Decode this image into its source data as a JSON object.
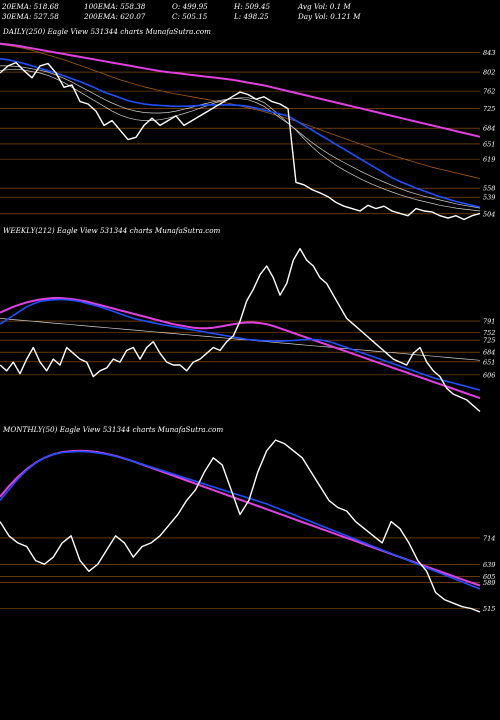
{
  "header": {
    "stats": [
      [
        "20EMA: 518.68",
        "100EMA: 558.38",
        "O: 499.95",
        "H: 509.45",
        "Avg Vol: 0.1 M"
      ],
      [
        "30EMA: 527.58",
        "200EMA: 620.07",
        "C: 505.15",
        "L: 498.25",
        "Day Vol: 0.121 M"
      ]
    ]
  },
  "panels": [
    {
      "label": "DAILY(250) Eagle   View  531344  charts MunafaSutra.com"
    },
    {
      "label": "WEEKLY(212) Eagle   View  531344  charts MunafaSutra.com"
    },
    {
      "label": "MONTHLY(50) Eagle   View  531344  charts MunafaSutra.com"
    }
  ],
  "colors": {
    "background": "#000000",
    "price": "#ffffff",
    "ema_blue": "#1f4fff",
    "ema_magenta": "#e040e0",
    "levels": "#a05a10",
    "ema_white": "#cfcfcf"
  },
  "chart_data": [
    {
      "type": "line",
      "title": "DAILY(250) Eagle   View  531344  charts MunafaSutra.com",
      "ylim": [
        470,
        880
      ],
      "price_levels": [
        843,
        802,
        762,
        725,
        684,
        651,
        619,
        558,
        539,
        504
      ],
      "series": [
        {
          "name": "",
          "values": [
            800,
            815,
            822,
            805,
            790,
            815,
            820,
            800,
            770,
            775,
            740,
            735,
            720,
            690,
            700,
            680,
            660,
            665,
            690,
            705,
            690,
            700,
            710,
            690,
            700,
            710,
            720,
            730,
            740,
            750,
            760,
            755,
            745,
            750,
            740,
            735,
            725,
            570,
            565,
            555,
            548,
            540,
            528,
            520,
            515,
            510,
            522,
            515,
            520,
            510,
            505,
            500,
            515,
            510,
            508,
            500,
            495,
            500,
            492,
            500,
            505
          ]
        },
        {
          "values": [
            830,
            828,
            824,
            820,
            815,
            810,
            805,
            800,
            794,
            788,
            782,
            775,
            768,
            760,
            754,
            748,
            742,
            738,
            735,
            733,
            732,
            731,
            730,
            730,
            731,
            732,
            733,
            733,
            733,
            733,
            732,
            730,
            726,
            722,
            718,
            714,
            710,
            700,
            690,
            680,
            670,
            660,
            650,
            640,
            630,
            620,
            610,
            600,
            590,
            580,
            572,
            565,
            558,
            552,
            546,
            540,
            535,
            530,
            526,
            522,
            518
          ]
        },
        {
          "values": [
            862,
            860,
            858,
            855,
            852,
            849,
            846,
            843,
            840,
            837,
            834,
            831,
            828,
            825,
            822,
            819,
            816,
            813,
            810,
            807,
            804,
            802,
            800,
            798,
            796,
            794,
            792,
            790,
            788,
            786,
            783,
            780,
            777,
            774,
            770,
            766,
            762,
            758,
            754,
            750,
            746,
            742,
            738,
            734,
            730,
            726,
            722,
            718,
            714,
            710,
            706,
            702,
            698,
            694,
            690,
            686,
            682,
            678,
            674,
            670,
            666
          ]
        },
        {
          "values": [
            805,
            807,
            808,
            806,
            803,
            800,
            795,
            788,
            780,
            770,
            760,
            750,
            740,
            730,
            720,
            712,
            706,
            702,
            700,
            700,
            702,
            705,
            710,
            715,
            720,
            726,
            732,
            738,
            742,
            746,
            748,
            748,
            745,
            738,
            725,
            710,
            695,
            680,
            662,
            645,
            630,
            618,
            606,
            596,
            587,
            578,
            570,
            563,
            556,
            550,
            544,
            539,
            534,
            530,
            526,
            522,
            519,
            516,
            514,
            512,
            510
          ]
        },
        {
          "values": [
            815,
            815,
            814,
            812,
            809,
            806,
            802,
            796,
            789,
            781,
            772,
            763,
            754,
            745,
            737,
            730,
            724,
            720,
            717,
            716,
            716,
            717,
            720,
            724,
            728,
            733,
            737,
            741,
            744,
            746,
            746,
            744,
            738,
            730,
            718,
            706,
            694,
            681,
            667,
            654,
            642,
            631,
            621,
            612,
            603,
            594,
            586,
            578,
            571,
            564,
            557,
            551,
            546,
            541,
            537,
            533,
            529,
            525,
            522,
            519,
            516
          ]
        },
        {
          "values": [
            860,
            858,
            855,
            852,
            848,
            843,
            838,
            833,
            828,
            822,
            816,
            810,
            804,
            798,
            792,
            786,
            781,
            776,
            771,
            767,
            763,
            759,
            756,
            753,
            750,
            747,
            744,
            741,
            738,
            735,
            731,
            727,
            723,
            719,
            714,
            709,
            704,
            699,
            693,
            687,
            681,
            675,
            669,
            663,
            657,
            651,
            645,
            639,
            633,
            627,
            622,
            617,
            612,
            607,
            602,
            598,
            594,
            590,
            586,
            582,
            578
          ]
        }
      ]
    },
    {
      "type": "line",
      "title": "WEEKLY(212) Eagle   View  531344  charts MunafaSutra.com",
      "ylim": [
        420,
        1090
      ],
      "price_levels": [
        791,
        752,
        725,
        684,
        651,
        606
      ],
      "series": [
        {
          "name": "",
          "values": [
            640,
            620,
            650,
            610,
            660,
            700,
            650,
            620,
            660,
            640,
            700,
            680,
            660,
            650,
            600,
            620,
            630,
            660,
            650,
            690,
            700,
            660,
            700,
            720,
            680,
            650,
            640,
            640,
            620,
            650,
            660,
            680,
            700,
            690,
            720,
            740,
            790,
            860,
            900,
            950,
            980,
            940,
            880,
            920,
            1000,
            1040,
            1000,
            980,
            940,
            920,
            880,
            840,
            800,
            780,
            760,
            740,
            720,
            700,
            680,
            660,
            650,
            640,
            680,
            700,
            650,
            620,
            600,
            560,
            540,
            530,
            520,
            500,
            480
          ]
        },
        {
          "values": [
            780,
            795,
            810,
            825,
            840,
            850,
            858,
            862,
            864,
            865,
            864,
            862,
            858,
            852,
            846,
            840,
            832,
            824,
            816,
            808,
            800,
            795,
            790,
            785,
            780,
            776,
            772,
            768,
            764,
            760,
            756,
            752,
            748,
            744,
            740,
            736,
            732,
            728,
            726,
            724,
            723,
            722,
            722,
            723,
            724,
            726,
            728,
            728,
            726,
            722,
            716,
            708,
            700,
            692,
            684,
            676,
            668,
            660,
            652,
            644,
            636,
            628,
            620,
            612,
            604,
            596,
            590,
            584,
            578,
            572,
            566,
            560,
            554
          ]
        },
        {
          "values": [
            820,
            830,
            840,
            848,
            855,
            860,
            865,
            868,
            870,
            870,
            868,
            866,
            862,
            858,
            852,
            846,
            840,
            834,
            828,
            822,
            816,
            810,
            804,
            798,
            792,
            786,
            780,
            776,
            772,
            768,
            766,
            766,
            768,
            772,
            776,
            780,
            784,
            786,
            786,
            784,
            780,
            774,
            766,
            758,
            750,
            742,
            734,
            726,
            718,
            710,
            702,
            694,
            686,
            678,
            670,
            662,
            654,
            646,
            638,
            630,
            622,
            614,
            606,
            598,
            590,
            582,
            574,
            566,
            558,
            550,
            542,
            534,
            526
          ]
        },
        {
          "values": [
            800,
            798,
            796,
            794,
            792,
            790,
            788,
            786,
            784,
            782,
            780,
            778,
            776,
            774,
            772,
            770,
            768,
            766,
            764,
            762,
            760,
            758,
            756,
            754,
            752,
            750,
            748,
            746,
            744,
            742,
            740,
            738,
            736,
            734,
            732,
            730,
            728,
            726,
            724,
            722,
            720,
            718,
            716,
            714,
            712,
            710,
            708,
            706,
            704,
            702,
            700,
            698,
            696,
            694,
            692,
            690,
            688,
            686,
            684,
            682,
            680,
            678,
            676,
            674,
            672,
            670,
            668,
            666,
            664,
            662,
            660,
            658,
            656
          ]
        }
      ]
    },
    {
      "type": "line",
      "title": "MONTHLY(50) Eagle   View  531344  charts MunafaSutra.com",
      "ylim": [
        460,
        1010
      ],
      "price_levels": [
        714,
        639,
        605,
        589,
        515
      ],
      "series": [
        {
          "name": "",
          "values": [
            760,
            720,
            700,
            690,
            650,
            640,
            660,
            700,
            720,
            650,
            620,
            640,
            680,
            720,
            700,
            660,
            690,
            700,
            720,
            750,
            780,
            820,
            850,
            900,
            940,
            920,
            850,
            780,
            820,
            900,
            960,
            990,
            980,
            960,
            940,
            900,
            860,
            820,
            800,
            790,
            760,
            740,
            720,
            700,
            760,
            740,
            700,
            650,
            620,
            560,
            540,
            530,
            520,
            515,
            505
          ]
        },
        {
          "values": [
            820,
            850,
            880,
            905,
            925,
            940,
            950,
            955,
            957,
            958,
            957,
            954,
            950,
            944,
            938,
            930,
            922,
            914,
            906,
            898,
            890,
            882,
            874,
            866,
            858,
            850,
            842,
            834,
            826,
            818,
            810,
            800,
            790,
            780,
            770,
            760,
            750,
            740,
            730,
            720,
            710,
            700,
            690,
            680,
            670,
            660,
            650,
            640,
            630,
            620,
            610,
            600,
            590,
            580,
            570
          ]
        },
        {
          "values": [
            830,
            860,
            886,
            908,
            926,
            940,
            950,
            956,
            959,
            960,
            959,
            956,
            951,
            945,
            938,
            930,
            921,
            912,
            903,
            894,
            885,
            876,
            867,
            858,
            849,
            840,
            831,
            822,
            813,
            804,
            795,
            786,
            777,
            768,
            759,
            750,
            741,
            732,
            723,
            714,
            705,
            696,
            687,
            678,
            669,
            660,
            651,
            642,
            633,
            624,
            615,
            606,
            597,
            588,
            580
          ]
        }
      ]
    }
  ]
}
